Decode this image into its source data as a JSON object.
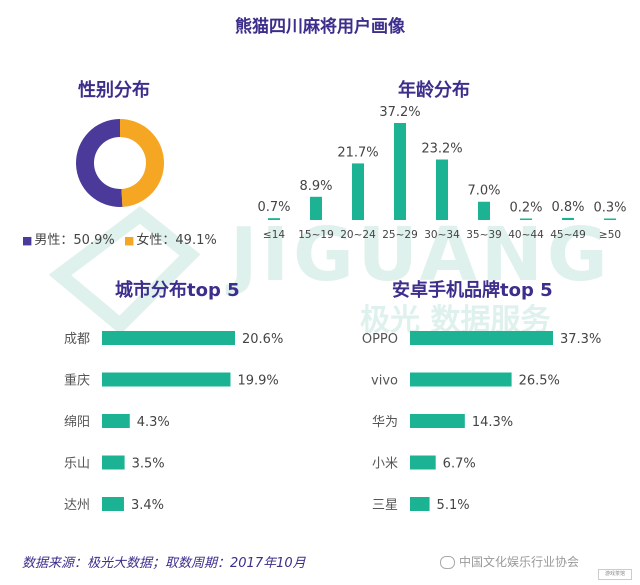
{
  "title": "熊猫四川麻将用户画像",
  "gender": {
    "title": "性别分布",
    "items": [
      {
        "label": "男性：50.9%",
        "value": 50.9,
        "color": "#4b3a99"
      },
      {
        "label": "女性：49.1%",
        "value": 49.1,
        "color": "#f5a623"
      }
    ]
  },
  "age": {
    "title": "年龄分布",
    "color": "#1bb394"
  },
  "city": {
    "title": "城市分布top 5",
    "color": "#1bb394"
  },
  "brand": {
    "title": "安卓手机品牌top 5",
    "color": "#1bb394"
  },
  "watermark": {
    "brand": "JIGUANG",
    "tagline": "极光 数据服务",
    "color": "#dff1ec"
  },
  "source": "数据来源：极光大数据；取数周期：2017年10月",
  "footer": {
    "wechat": "中国文化娱乐行业协会",
    "logo": "游戏茶馆"
  },
  "chart_data": [
    {
      "type": "pie",
      "title": "性别分布",
      "categories": [
        "男性",
        "女性"
      ],
      "values": [
        50.9,
        49.1
      ],
      "unit": "%"
    },
    {
      "type": "bar",
      "title": "年龄分布",
      "categories": [
        "≤14",
        "15~19",
        "20~24",
        "25~29",
        "30~34",
        "35~39",
        "40~44",
        "45~49",
        "≥50"
      ],
      "values": [
        0.7,
        8.9,
        21.7,
        37.2,
        23.2,
        7.0,
        0.2,
        0.8,
        0.3
      ],
      "labels": [
        "0.7%",
        "8.9%",
        "21.7%",
        "37.2%",
        "23.2%",
        "7.0%",
        "0.2%",
        "0.8%",
        "0.3%"
      ],
      "unit": "%"
    },
    {
      "type": "bar",
      "orientation": "horizontal",
      "title": "城市分布top 5",
      "categories": [
        "成都",
        "重庆",
        "绵阳",
        "乐山",
        "达州"
      ],
      "values": [
        20.6,
        19.9,
        4.3,
        3.5,
        3.4
      ],
      "labels": [
        "20.6%",
        "19.9%",
        "4.3%",
        "3.5%",
        "3.4%"
      ],
      "unit": "%"
    },
    {
      "type": "bar",
      "orientation": "horizontal",
      "title": "安卓手机品牌top 5",
      "categories": [
        "OPPO",
        "vivo",
        "华为",
        "小米",
        "三星"
      ],
      "values": [
        37.3,
        26.5,
        14.3,
        6.7,
        5.1
      ],
      "labels": [
        "37.3%",
        "26.5%",
        "14.3%",
        "6.7%",
        "5.1%"
      ],
      "unit": "%"
    }
  ]
}
